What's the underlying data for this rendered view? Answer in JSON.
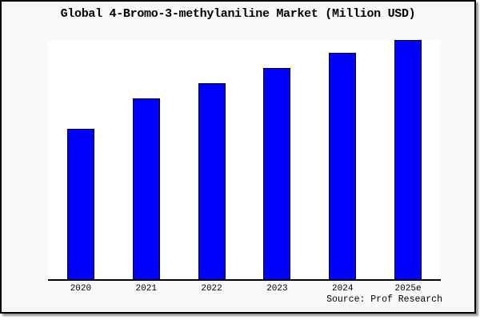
{
  "window": {
    "background_color": "#f8f8f8",
    "frame_border_color": "#000000",
    "shadow_color": "#999999"
  },
  "chart_data": {
    "type": "bar",
    "title": "Global 4-Bromo-3-methylaniline Market (Million USD)",
    "categories": [
      "2020",
      "2021",
      "2022",
      "2023",
      "2024",
      "2025e"
    ],
    "values": [
      63,
      75.5,
      82,
      88.3,
      94.5,
      100
    ],
    "ylim": [
      0,
      100
    ],
    "value_note": "no y-axis ticks or value labels shown; values are relative bar heights with tallest bar (2025e) = 100",
    "xlabel": "",
    "ylabel": "",
    "grid": false,
    "legend": false,
    "y_axis_shown": false,
    "bar_fill_color": "#0000ff",
    "bar_border_color": "#000000",
    "axis_line_color": "#000000",
    "plot_background": "#ffffff"
  },
  "footer": {
    "source_label": "Source: Prof Research"
  }
}
